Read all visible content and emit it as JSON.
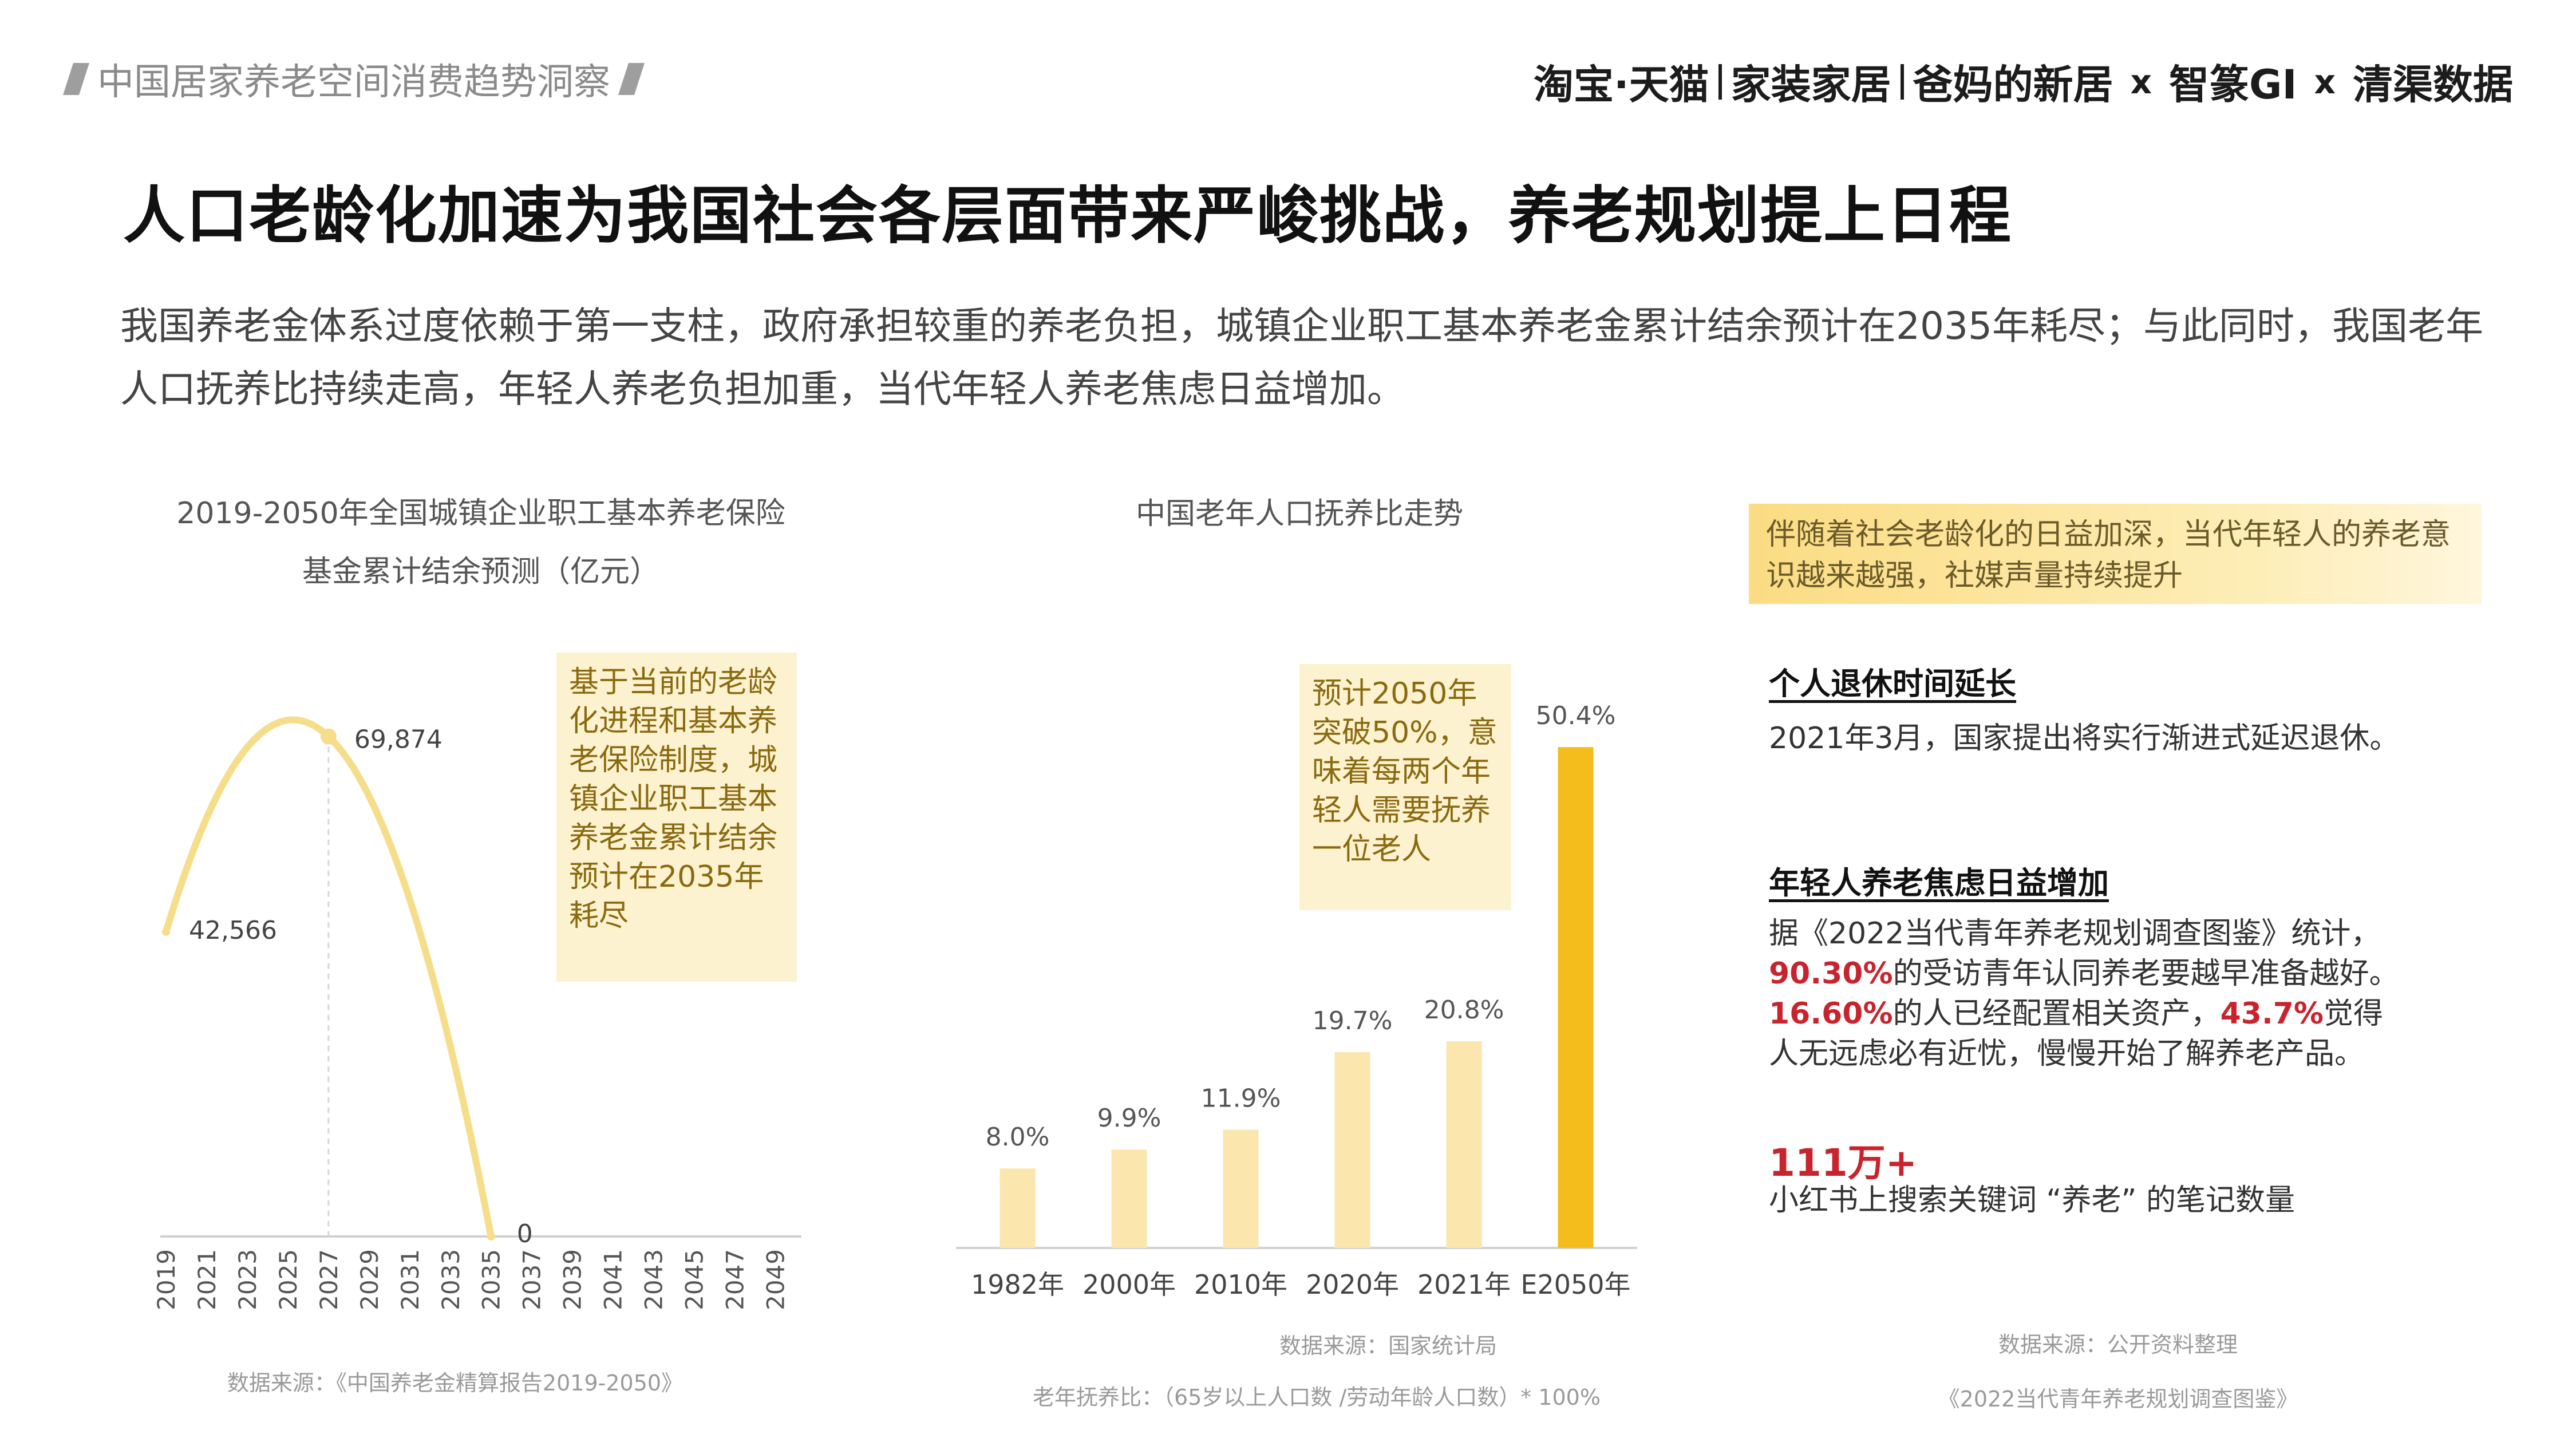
{
  "header": {
    "report_title": "中国居家养老空间消费趋势洞察",
    "brand_taobao": "淘宝·天猫",
    "brand_home": "家装家居",
    "brand_bama": "爸妈的新居",
    "brand_x1": "x",
    "brand_zhizhuan": "智篆GI",
    "brand_x2": "x",
    "brand_qingqu": "清渠数据"
  },
  "headline": "人口老龄化加速为我国社会各层面带来严峻挑战，养老规划提上日程",
  "intro": "我国养老金体系过度依赖于第一支柱，政府承担较重的养老负担，城镇企业职工基本养老金累计结余预计在2035年耗尽；与此同时，我国老年人口抚养比持续走高，年轻人养老负担加重，当代年轻人养老焦虑日益增加。",
  "chart_data": [
    {
      "type": "line",
      "title": "2019-2050年全国城镇企业职工基本养老保险基金累计结余预测（亿元）",
      "x": [
        2019,
        2027,
        2035
      ],
      "y": [
        42566,
        69874,
        0
      ],
      "point_labels": [
        "42,566",
        "69,874",
        "0"
      ],
      "xticks": [
        "2019",
        "2021",
        "2023",
        "2025",
        "2027",
        "2029",
        "2031",
        "2033",
        "2035",
        "2037",
        "2039",
        "2041",
        "2043",
        "2045",
        "2047",
        "2049"
      ],
      "color": "#f6dd8a",
      "annotation": "基于当前的老龄化进程和基本养老保险制度，城镇企业职工基本养老金累计结余预计在2035年耗尽",
      "source": "数据来源：《中国养老金精算报告2019-2050》"
    },
    {
      "type": "bar",
      "title": "中国老年人口抚养比走势",
      "categories": [
        "1982年",
        "2000年",
        "2010年",
        "2020年",
        "2021年",
        "E2050年"
      ],
      "values": [
        8.0,
        9.9,
        11.9,
        19.7,
        20.8,
        50.4
      ],
      "value_labels": [
        "8.0%",
        "9.9%",
        "11.9%",
        "19.7%",
        "20.8%",
        "50.4%"
      ],
      "colors": [
        "#fbe6ad",
        "#fbe6ad",
        "#fbe6ad",
        "#fbe6ad",
        "#fbe6ad",
        "#f4bd1c"
      ],
      "annotation": "预计2050年突破50%，意味着每两个年轻人需要抚养一位老人",
      "source": "数据来源：国家统计局",
      "formula": "老年抚养比：（65岁以上人口数 /劳动年龄人口数）* 100%"
    }
  ],
  "right_panel": {
    "banner": "伴随着社会老龄化的日益加深，当代年轻人的养老意识越来越强，社媒声量持续提升",
    "sec1_title": "个人退休时间延长",
    "sec1_text": "2021年3月，国家提出将实行渐进式延迟退休。",
    "sec2_title": "年轻人养老焦虑日益增加",
    "sec2_line1": "据《2022当代青年养老规划调查图鉴》统计，",
    "sec2_pct1": "90.30%",
    "sec2_line2": "的受访青年认同养老要越早准备越好。",
    "sec2_pct2": "16.60%",
    "sec2_line3": "的人已经配置相关资产，",
    "sec2_pct3": "43.7%",
    "sec2_line4": "觉得",
    "sec2_line5": "人无远虑必有近忧，慢慢开始了解养老产品。",
    "stat_value": "111万+",
    "stat_desc": "小红书上搜索关键词 “养老” 的笔记数量",
    "source1": "数据来源：公开资料整理",
    "source2": "《2022当代青年养老规划调查图鉴》"
  }
}
